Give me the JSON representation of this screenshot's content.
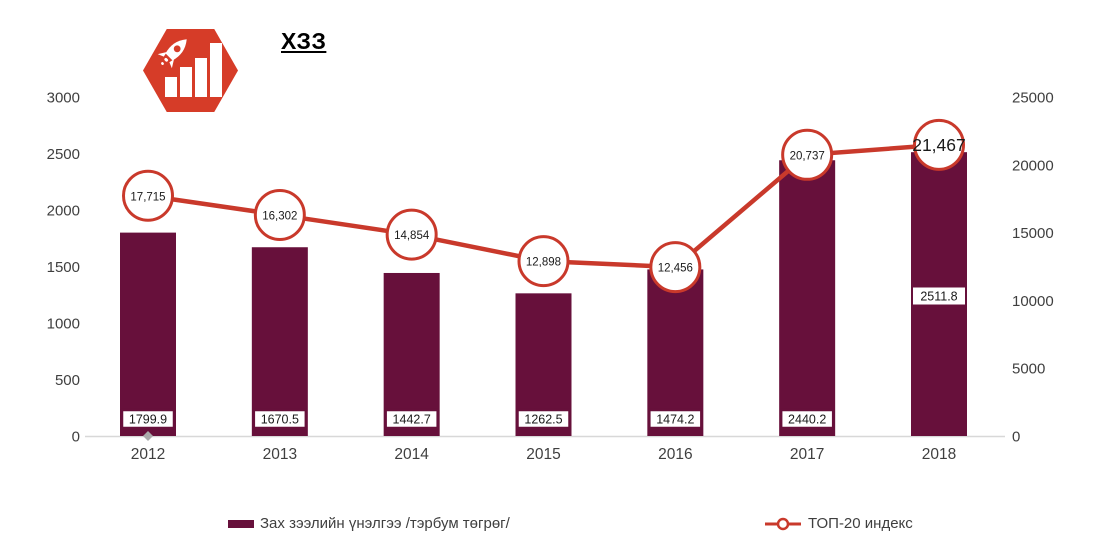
{
  "header": {
    "logo_color": "#D63C28",
    "logo_icon": "rocket-and-bar-chart"
  },
  "chart_data": {
    "type": "combo",
    "title": "ХЗЗ",
    "categories": [
      "2012",
      "2013",
      "2014",
      "2015",
      "2016",
      "2017",
      "2018"
    ],
    "series": [
      {
        "name": "Зах зээлийн үнэлгээ /тэрбум төгрөг/",
        "type": "bar",
        "axis": "left",
        "values": [
          1799.9,
          1670.5,
          1442.7,
          1262.5,
          1474.2,
          2440.2,
          2511.8
        ],
        "labels": [
          "1799.9",
          "1670.5",
          "1442.7",
          "1262.5",
          "1474.2",
          "2440.2",
          "2511.8"
        ],
        "color": "#67103B"
      },
      {
        "name": "ТОП-20 индекс",
        "type": "line",
        "axis": "right",
        "values": [
          17715,
          16302,
          14854,
          12898,
          12456,
          20737,
          21467
        ],
        "labels": [
          "17,715",
          "16,302",
          "14,854",
          "12,898",
          "12,456",
          "20,737",
          "21,467"
        ],
        "color": "#C9392B",
        "marker": "open-circle"
      }
    ],
    "left_axis": {
      "min": 0,
      "max": 3000,
      "ticks": [
        "0",
        "500",
        "1000",
        "1500",
        "2000",
        "2500",
        "3000"
      ]
    },
    "right_axis": {
      "min": 0,
      "max": 25000,
      "ticks": [
        "0",
        "5000",
        "10000",
        "15000",
        "20000",
        "25000"
      ]
    },
    "grid": false,
    "legend_position": "bottom"
  },
  "colors": {
    "axis_text": "#3F3F3F",
    "axis_line": "#D8D8D8",
    "marker_fill": "#FFFFFF",
    "stray_point": "#ABABAB",
    "background": "#FFFFFF"
  }
}
